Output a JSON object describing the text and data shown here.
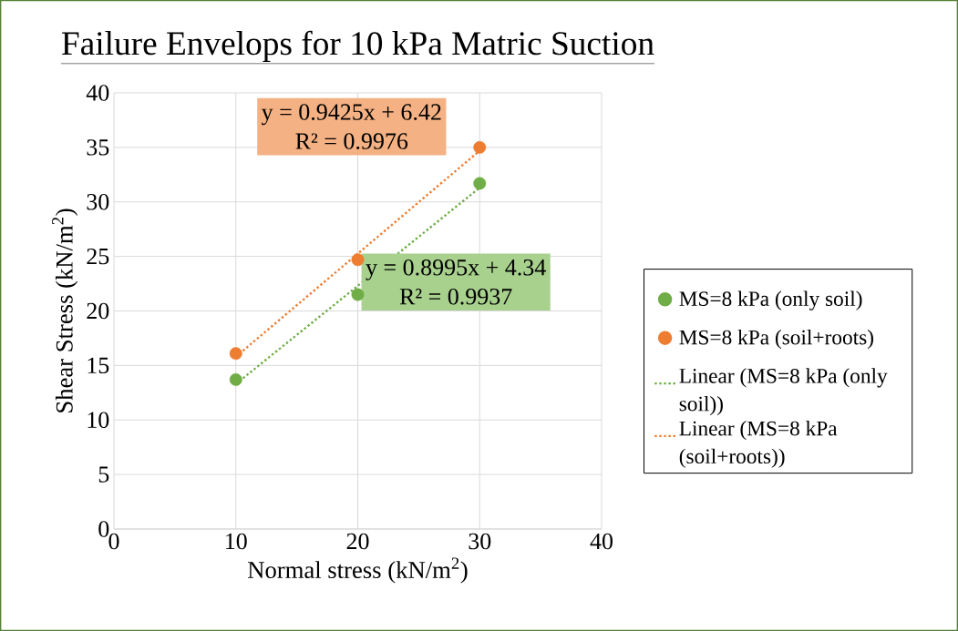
{
  "chart_data": {
    "type": "scatter",
    "title": "Failure Envelops for 10 kPa Matric Suction",
    "xlabel": "Normal stress (kN/m$^{2}$)",
    "ylabel": "Shear Stress (kN/m$^{2}$)",
    "xlim": [
      0,
      40
    ],
    "xticks": [
      0,
      10,
      20,
      30,
      40
    ],
    "ylim": [
      0,
      40
    ],
    "yticks": [
      0,
      5,
      10,
      15,
      20,
      25,
      30,
      35,
      40
    ],
    "grid": true,
    "legend": "right",
    "series": [
      {
        "name": "MS=8 kPa (only soil)",
        "color": "#70ad47",
        "marker": "circle",
        "x": [
          10,
          20,
          30
        ],
        "values": [
          13.7,
          21.5,
          31.7
        ]
      },
      {
        "name": "MS=8 kPa (soil+roots)",
        "color": "#ed7d31",
        "marker": "circle",
        "x": [
          10,
          20,
          30
        ],
        "values": [
          16.1,
          24.7,
          35.0
        ]
      },
      {
        "name": "Linear (MS=8 kPa (only soil))",
        "type": "line",
        "color": "#70ad47",
        "marker": "none",
        "line_style": "dotted",
        "x": [
          10,
          30
        ],
        "values": [
          13.3,
          31.3
        ]
      },
      {
        "name": "Linear (MS=8 kPa (soil+roots))",
        "type": "line",
        "color": "#ed7d31",
        "marker": "none",
        "line_style": "dotted",
        "x": [
          10,
          30
        ],
        "values": [
          15.8,
          34.7
        ]
      }
    ],
    "annotations": [
      "y = 0.9425x + 6.42",
      "R² = 0.9976",
      "y = 0.8995x + 4.34",
      "R² = 0.9937"
    ]
  }
}
